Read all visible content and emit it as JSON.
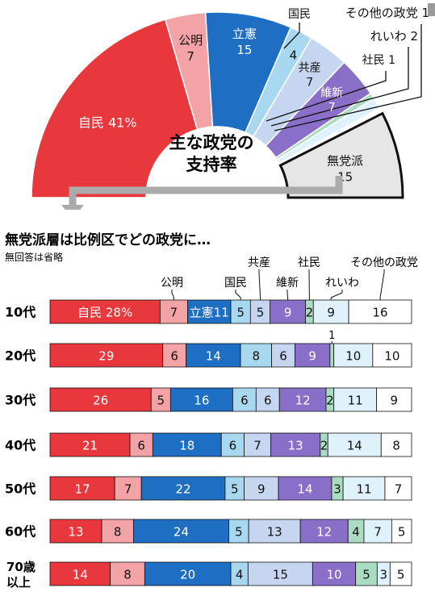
{
  "chart_data": [
    {
      "type": "pie",
      "title": "主な政党の支持率",
      "unit": "%",
      "slices": [
        {
          "label": "自民",
          "value": 41,
          "value_text": "自民 41%",
          "color": "#e8383d"
        },
        {
          "label": "公明",
          "value": 7,
          "value_text": "7",
          "color": "#f3a3a6"
        },
        {
          "label": "立憲",
          "value": 15,
          "value_text": "15",
          "color": "#1e6fc4"
        },
        {
          "label": "国民",
          "value": 4,
          "value_text": "4",
          "color": "#a8d8f0"
        },
        {
          "label": "共産",
          "value": 7,
          "value_text": "7",
          "color": "#c7d6f0"
        },
        {
          "label": "維新",
          "value": 7,
          "value_text": "7",
          "color": "#8a6fc8"
        },
        {
          "label": "社民",
          "value": 1,
          "value_text": "社民 1",
          "color": "#a9dcc0"
        },
        {
          "label": "れいわ",
          "value": 2,
          "value_text": "れいわ 2",
          "color": "#dff1fa"
        },
        {
          "label": "その他の政党",
          "value": 1,
          "value_text": "その他の政党 1",
          "color": "#ffffff"
        },
        {
          "label": "無党派",
          "value": 15,
          "value_text": "15",
          "color": "#e6e6e6"
        }
      ]
    },
    {
      "type": "bar",
      "orientation": "horizontal-stacked",
      "title": "無党派層は比例区でどの政党に…",
      "subtitle": "無回答は省略",
      "categories": [
        "10代",
        "20代",
        "30代",
        "40代",
        "50代",
        "60代",
        "70歳以上"
      ],
      "category_display": [
        [
          "10代"
        ],
        [
          "20代"
        ],
        [
          "30代"
        ],
        [
          "40代"
        ],
        [
          "50代"
        ],
        [
          "60代"
        ],
        [
          "70歳",
          "以上"
        ]
      ],
      "series": [
        {
          "name": "自民",
          "color": "#e8383d",
          "values": [
            28,
            29,
            26,
            21,
            17,
            13,
            14
          ]
        },
        {
          "name": "公明",
          "color": "#f3a3a6",
          "values": [
            7,
            6,
            5,
            6,
            7,
            8,
            8
          ]
        },
        {
          "name": "立憲",
          "color": "#1e6fc4",
          "values": [
            11,
            14,
            16,
            18,
            22,
            24,
            20
          ]
        },
        {
          "name": "国民",
          "color": "#a8d8f0",
          "values": [
            5,
            8,
            6,
            6,
            5,
            5,
            4
          ]
        },
        {
          "name": "共産",
          "color": "#c7d6f0",
          "values": [
            5,
            6,
            6,
            7,
            9,
            13,
            15
          ]
        },
        {
          "name": "維新",
          "color": "#8a6fc8",
          "values": [
            9,
            9,
            12,
            13,
            14,
            12,
            10
          ]
        },
        {
          "name": "社民",
          "color": "#a9dcc0",
          "values": [
            2,
            1,
            2,
            2,
            3,
            4,
            5
          ]
        },
        {
          "name": "れいわ",
          "color": "#dff1fa",
          "values": [
            9,
            10,
            11,
            14,
            11,
            7,
            3
          ]
        },
        {
          "name": "その他の政党",
          "color": "#ffffff",
          "values": [
            16,
            10,
            9,
            8,
            7,
            5,
            5
          ]
        }
      ],
      "first_row_labels": [
        "自民 28%",
        "7",
        "立憲11",
        "5",
        "5",
        "9",
        "2",
        "9",
        "16"
      ],
      "hidden_labels": [
        [
          1,
          6
        ]
      ],
      "callout_labels": [
        {
          "row": 1,
          "series": 6,
          "text": "1"
        }
      ]
    }
  ]
}
